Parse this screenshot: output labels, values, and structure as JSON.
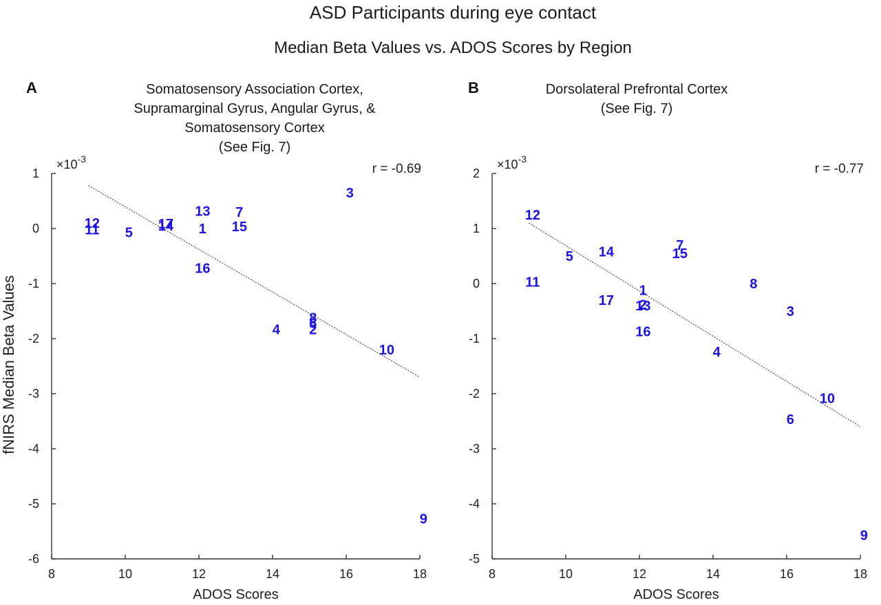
{
  "figure": {
    "title": "ASD Participants during eye contact",
    "subtitle": "Median Beta Values vs. ADOS Scores by Region",
    "ylabel": "fNIRS Median Beta Values"
  },
  "chart_data": [
    {
      "type": "scatter",
      "panel": "A",
      "title_lines": [
        "Somatosensory Association Cortex,",
        "Supramarginal Gyrus, Angular Gyrus, &",
        "Somatosensory Cortex",
        "(See Fig. 7)"
      ],
      "xlabel": "ADOS Scores",
      "ylabel": "fNIRS Median Beta Values",
      "y_multiplier": "×10",
      "y_exponent": "-3",
      "xlim": [
        8,
        18
      ],
      "ylim": [
        -6,
        1
      ],
      "xticks": [
        "8",
        "10",
        "12",
        "14",
        "16",
        "18"
      ],
      "yticks": [
        "1",
        "0",
        "-1",
        "-2",
        "-3",
        "-4",
        "-5",
        "-6"
      ],
      "correlation": "r = -0.69",
      "fit_line": {
        "x": [
          9,
          18
        ],
        "y": [
          0.78,
          -2.7
        ]
      },
      "points": [
        {
          "label": "1",
          "x": 12.1,
          "y": 0.0
        },
        {
          "label": "2",
          "x": 15.1,
          "y": -1.83
        },
        {
          "label": "3",
          "x": 16.1,
          "y": 0.65
        },
        {
          "label": "4",
          "x": 14.1,
          "y": -1.83
        },
        {
          "label": "5",
          "x": 10.1,
          "y": -0.07
        },
        {
          "label": "6",
          "x": 15.1,
          "y": -1.72
        },
        {
          "label": "7",
          "x": 13.1,
          "y": 0.3
        },
        {
          "label": "8",
          "x": 15.1,
          "y": -1.62
        },
        {
          "label": "9",
          "x": 18.1,
          "y": -5.27
        },
        {
          "label": "10",
          "x": 17.1,
          "y": -2.2
        },
        {
          "label": "11",
          "x": 9.1,
          "y": -0.02
        },
        {
          "label": "12",
          "x": 9.1,
          "y": 0.1
        },
        {
          "label": "13",
          "x": 12.1,
          "y": 0.32
        },
        {
          "label": "14",
          "x": 11.1,
          "y": 0.05
        },
        {
          "label": "15",
          "x": 13.1,
          "y": 0.04
        },
        {
          "label": "16",
          "x": 12.1,
          "y": -0.72
        },
        {
          "label": "17",
          "x": 11.1,
          "y": 0.09
        }
      ]
    },
    {
      "type": "scatter",
      "panel": "B",
      "title_lines": [
        "Dorsolateral Prefrontal Cortex",
        "(See Fig. 7)"
      ],
      "xlabel": "ADOS Scores",
      "ylabel": "",
      "y_multiplier": "×10",
      "y_exponent": "-3",
      "xlim": [
        8,
        18
      ],
      "ylim": [
        -5,
        2
      ],
      "xticks": [
        "8",
        "10",
        "12",
        "14",
        "16",
        "18"
      ],
      "yticks": [
        "2",
        "1",
        "0",
        "-1",
        "-2",
        "-3",
        "-4",
        "-5"
      ],
      "correlation": "r = -0.77",
      "fit_line": {
        "x": [
          9,
          18
        ],
        "y": [
          1.1,
          -2.6
        ]
      },
      "points": [
        {
          "label": "1",
          "x": 12.1,
          "y": -0.12
        },
        {
          "label": "2",
          "x": 12.1,
          "y": -0.38
        },
        {
          "label": "3",
          "x": 16.1,
          "y": -0.5
        },
        {
          "label": "4",
          "x": 14.1,
          "y": -1.24
        },
        {
          "label": "5",
          "x": 10.1,
          "y": 0.5
        },
        {
          "label": "6",
          "x": 16.1,
          "y": -2.46
        },
        {
          "label": "7",
          "x": 13.1,
          "y": 0.7
        },
        {
          "label": "8",
          "x": 15.1,
          "y": 0.0
        },
        {
          "label": "9",
          "x": 18.1,
          "y": -4.57
        },
        {
          "label": "10",
          "x": 17.1,
          "y": -2.08
        },
        {
          "label": "11",
          "x": 9.1,
          "y": 0.03
        },
        {
          "label": "12",
          "x": 9.1,
          "y": 1.25
        },
        {
          "label": "13",
          "x": 12.1,
          "y": -0.4
        },
        {
          "label": "14",
          "x": 11.1,
          "y": 0.58
        },
        {
          "label": "15",
          "x": 13.1,
          "y": 0.55
        },
        {
          "label": "16",
          "x": 12.1,
          "y": -0.87
        },
        {
          "label": "17",
          "x": 11.1,
          "y": -0.3
        }
      ]
    }
  ]
}
